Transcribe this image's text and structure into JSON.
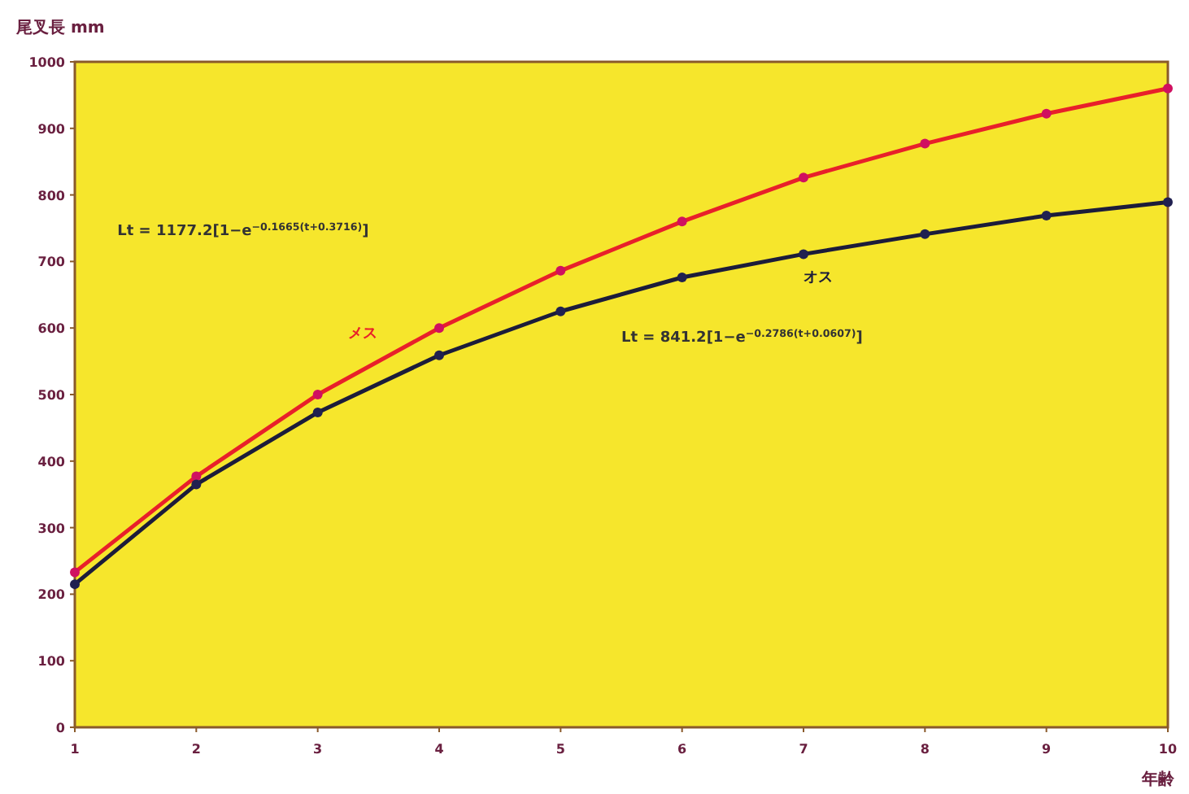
{
  "chart_data": {
    "type": "line",
    "xlabel": "年齢",
    "ylabel": "尾叉長 mm",
    "x": [
      1,
      2,
      3,
      4,
      5,
      6,
      7,
      8,
      9,
      10
    ],
    "xlim": [
      1,
      10
    ],
    "xticks": [
      1,
      2,
      3,
      4,
      5,
      6,
      7,
      8,
      9,
      10
    ],
    "ylim": [
      0,
      1000
    ],
    "yticks": [
      0,
      100,
      200,
      300,
      400,
      500,
      600,
      700,
      800,
      900,
      1000
    ],
    "marker": "circle",
    "line_style": "solid",
    "series": [
      {
        "name": "メス",
        "color": "#e8202a",
        "values": [
          233,
          377,
          500,
          600,
          686,
          760,
          826,
          877,
          922,
          960
        ]
      },
      {
        "name": "オス",
        "color": "#1c1c3a",
        "values": [
          215,
          365,
          473,
          559,
          625,
          676,
          711,
          741,
          769,
          789
        ]
      }
    ],
    "annotations": [
      "Lt = 1177.2[1−e$^{−0.1665(t+0.3716)}$]",
      "Lt = 841.2[1−e$^{−0.2786(t+0.0607)}$]"
    ]
  }
}
